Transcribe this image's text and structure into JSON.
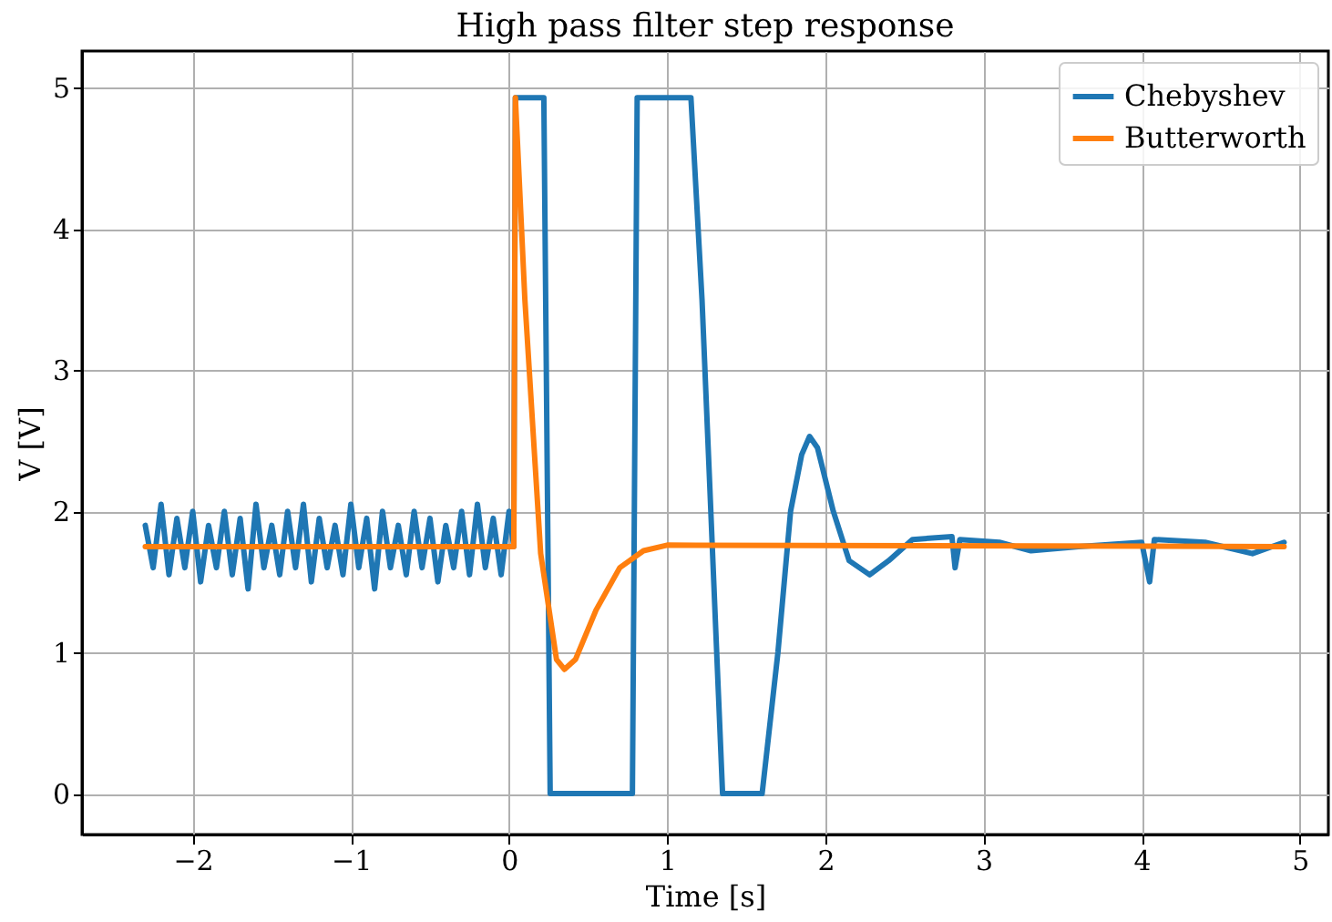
{
  "chart_data": {
    "type": "line",
    "title": "High pass filter step response",
    "xlabel": "Time [s]",
    "ylabel": "V [V]",
    "xlim": [
      -2.7,
      5.18
    ],
    "ylim": [
      -0.29,
      5.26
    ],
    "xticks": [
      -2,
      -1,
      0,
      1,
      2,
      3,
      4,
      5
    ],
    "yticks": [
      0,
      1,
      2,
      3,
      4,
      5
    ],
    "grid": true,
    "legend": "top right",
    "line_style": "solid",
    "marker": "none",
    "series": [
      {
        "name": "Chebyshev",
        "color": "#1f77b4",
        "x": [
          -2.3,
          -2.25,
          -2.2,
          -2.15,
          -2.1,
          -2.05,
          -2.0,
          -1.95,
          -1.9,
          -1.85,
          -1.8,
          -1.75,
          -1.7,
          -1.65,
          -1.6,
          -1.55,
          -1.5,
          -1.45,
          -1.4,
          -1.35,
          -1.3,
          -1.25,
          -1.2,
          -1.15,
          -1.1,
          -1.05,
          -1.0,
          -0.95,
          -0.9,
          -0.85,
          -0.8,
          -0.75,
          -0.7,
          -0.65,
          -0.6,
          -0.55,
          -0.5,
          -0.45,
          -0.4,
          -0.35,
          -0.3,
          -0.25,
          -0.2,
          -0.15,
          -0.1,
          -0.05,
          0.0,
          0.03,
          0.04,
          0.22,
          0.26,
          0.78,
          0.81,
          1.15,
          1.22,
          1.35,
          1.6,
          1.7,
          1.78,
          1.85,
          1.9,
          1.95,
          2.05,
          2.15,
          2.28,
          2.4,
          2.55,
          2.8,
          2.82,
          2.85,
          3.1,
          3.3,
          3.6,
          4.0,
          4.05,
          4.08,
          4.4,
          4.7,
          4.9
        ],
        "values": [
          1.9,
          1.6,
          2.05,
          1.55,
          1.95,
          1.6,
          2.0,
          1.5,
          1.9,
          1.6,
          2.0,
          1.55,
          1.95,
          1.45,
          2.05,
          1.6,
          1.9,
          1.55,
          2.0,
          1.6,
          2.05,
          1.5,
          1.95,
          1.6,
          1.9,
          1.55,
          2.05,
          1.6,
          1.95,
          1.45,
          2.0,
          1.6,
          1.9,
          1.55,
          2.0,
          1.6,
          1.95,
          1.5,
          1.9,
          1.6,
          2.0,
          1.55,
          2.05,
          1.6,
          1.95,
          1.55,
          2.0,
          1.75,
          4.93,
          4.93,
          0,
          0,
          4.93,
          4.93,
          3.5,
          0,
          0,
          1.0,
          2.0,
          2.4,
          2.53,
          2.45,
          2.0,
          1.65,
          1.55,
          1.65,
          1.8,
          1.82,
          1.6,
          1.8,
          1.78,
          1.72,
          1.75,
          1.78,
          1.5,
          1.8,
          1.78,
          1.7,
          1.78
        ]
      },
      {
        "name": "Butterworth",
        "color": "#ff7f0e",
        "x": [
          -2.3,
          0.03,
          0.04,
          0.1,
          0.2,
          0.3,
          0.35,
          0.42,
          0.55,
          0.7,
          0.85,
          1.0,
          4.9
        ],
        "values": [
          1.75,
          1.75,
          4.93,
          3.5,
          1.7,
          0.95,
          0.88,
          0.95,
          1.3,
          1.6,
          1.72,
          1.76,
          1.75
        ]
      }
    ]
  }
}
